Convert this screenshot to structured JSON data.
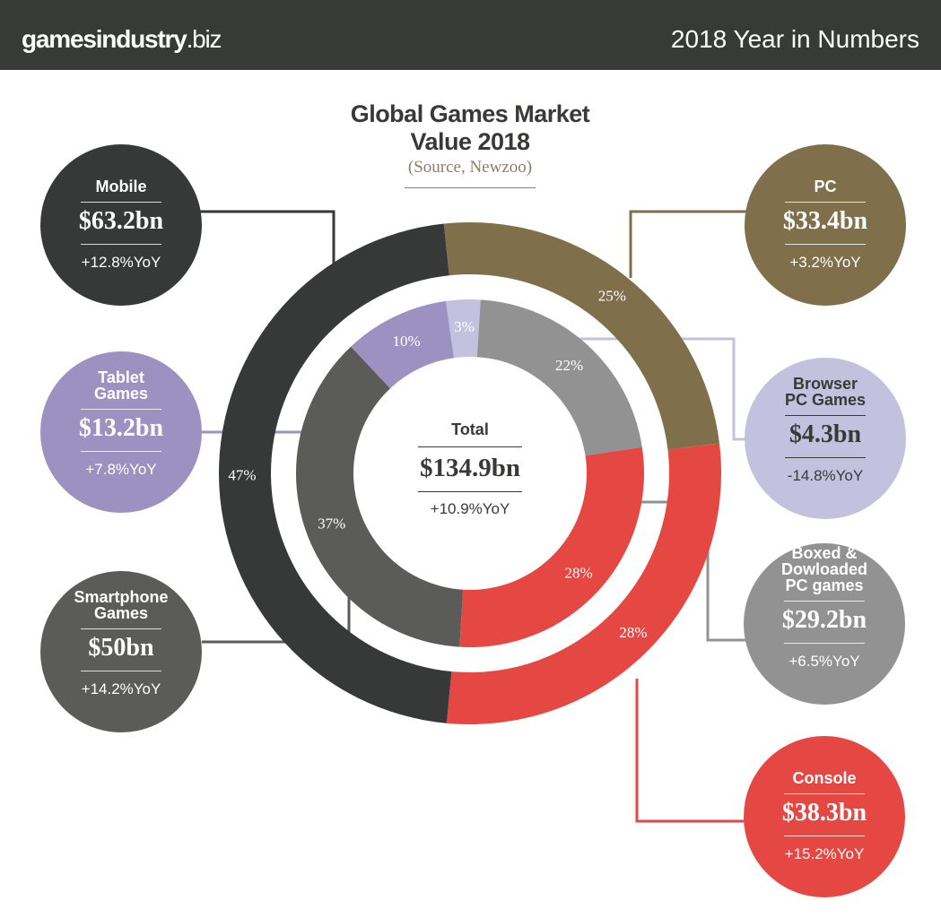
{
  "header": {
    "logo_main": "gamesindustry",
    "logo_suffix": ".biz",
    "title": "2018 Year in Numbers"
  },
  "colors": {
    "header_bg": "#383a37",
    "mobile": "#363937",
    "smartphone": "#5b5c58",
    "tablet": "#9c91c1",
    "pc": "#7f6f4b",
    "browser": "#c2c2df",
    "boxed": "#929292",
    "console": "#e54843"
  },
  "chart_data": {
    "type": "pie",
    "title": "Global Games Market Value 2018",
    "subtitle": "(Source, Newzoo)",
    "total": {
      "label": "Total",
      "value": "$134.9bn",
      "yoy": "+10.9%YoY"
    },
    "outer_ring": [
      {
        "name": "PC",
        "value": 33.4,
        "display": "$33.4bn",
        "yoy": "+3.2%YoY",
        "pct_label": "25%",
        "color": "#7f6f4b"
      },
      {
        "name": "Console",
        "value": 38.3,
        "display": "$38.3bn",
        "yoy": "+15.2%YoY",
        "pct_label": "28%",
        "color": "#e54843"
      },
      {
        "name": "Mobile",
        "value": 63.2,
        "display": "$63.2bn",
        "yoy": "+12.8%YoY",
        "pct_label": "47%",
        "color": "#363937"
      }
    ],
    "inner_ring": [
      {
        "name": "Browser PC Games",
        "value": 4.3,
        "display": "$4.3bn",
        "yoy": "-14.8%YoY",
        "pct_label": "3%",
        "color": "#c2c2df"
      },
      {
        "name": "Boxed & Dowloaded PC games",
        "value": 29.2,
        "display": "$29.2bn",
        "yoy": "+6.5%YoY",
        "pct_label": "22%",
        "color": "#929292"
      },
      {
        "name": "Console",
        "value": 38.3,
        "pct_label": "28%",
        "color": "#e54843"
      },
      {
        "name": "Smartphone Games",
        "value": 50,
        "display": "$50bn",
        "yoy": "+14.2%YoY",
        "pct_label": "37%",
        "color": "#5b5c58"
      },
      {
        "name": "Tablet Games",
        "value": 13.2,
        "display": "$13.2bn",
        "yoy": "+7.8%YoY",
        "pct_label": "10%",
        "color": "#9c91c1"
      }
    ]
  },
  "bubbles": {
    "mobile": {
      "name": "Mobile",
      "value": "$63.2bn",
      "yoy": "+12.8%YoY"
    },
    "tablet": {
      "name": "Tablet\nGames",
      "value": "$13.2bn",
      "yoy": "+7.8%YoY"
    },
    "smartphone": {
      "name": "Smartphone\nGames",
      "value": "$50bn",
      "yoy": "+14.2%YoY"
    },
    "pc": {
      "name": "PC",
      "value": "$33.4bn",
      "yoy": "+3.2%YoY"
    },
    "browser": {
      "name": "Browser\nPC Games",
      "value": "$4.3bn",
      "yoy": "-14.8%YoY"
    },
    "boxed": {
      "name": "Boxed &\nDowloaded\nPC games",
      "value": "$29.2bn",
      "yoy": "+6.5%YoY"
    },
    "console": {
      "name": "Console",
      "value": "$38.3bn",
      "yoy": "+15.2%YoY"
    }
  }
}
